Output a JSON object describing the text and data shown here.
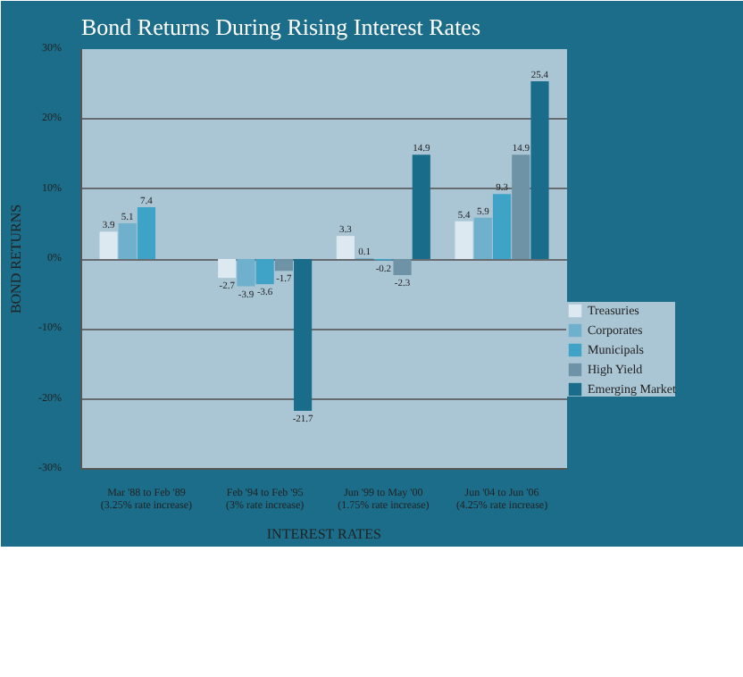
{
  "chart_data": {
    "type": "bar",
    "title": "Bond Returns During Rising Interest Rates",
    "xlabel": "INTEREST RATES",
    "ylabel": "BOND RETURNS",
    "categories": [
      "Mar '88 to Feb '89\n(3.25% rate increase)",
      "Feb '94 to Feb '95\n(3% rate increase)",
      "Jun '99 to May '00\n(1.75% rate increase)",
      "Jun '04 to Jun '06\n(4.25% rate increase)"
    ],
    "series": [
      {
        "name": "Treasuries",
        "color": "#dce9f0",
        "values": [
          3.9,
          -2.7,
          3.3,
          5.4
        ]
      },
      {
        "name": "Corporates",
        "color": "#6fb0cc",
        "values": [
          5.1,
          -3.9,
          0.1,
          5.9
        ]
      },
      {
        "name": "Municipals",
        "color": "#3fa3c8",
        "values": [
          7.4,
          -3.6,
          -0.2,
          9.3
        ]
      },
      {
        "name": "High Yield",
        "color": "#6f93a6",
        "values": [
          null,
          -1.7,
          -2.3,
          14.9
        ]
      },
      {
        "name": "Emerging Market",
        "color": "#196d8a",
        "values": [
          null,
          -21.7,
          14.9,
          25.4
        ]
      }
    ],
    "ylim": [
      -30,
      30
    ],
    "yticks": [
      {
        "value": -30,
        "label": "-30%"
      },
      {
        "value": -20,
        "label": "-20%"
      },
      {
        "value": -10,
        "label": "-10%"
      },
      {
        "value": 0,
        "label": "0%"
      },
      {
        "value": 10,
        "label": "10%"
      },
      {
        "value": 20,
        "label": "20%"
      },
      {
        "value": 30,
        "label": "30%"
      }
    ],
    "grid": "y",
    "legend": "right",
    "data_labels": true
  }
}
